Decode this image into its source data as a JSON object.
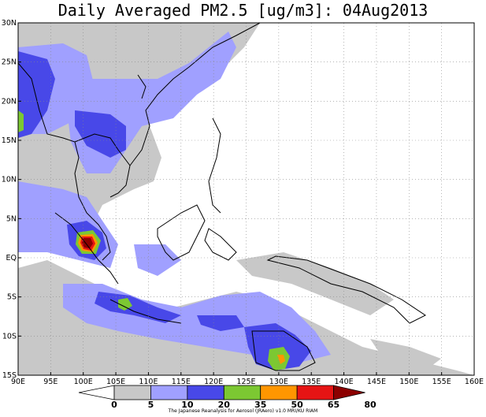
{
  "title": "Daily Averaged PM2.5 [ug/m3]: 04Aug2013",
  "lat_labels": [
    "30N",
    "25N",
    "20N",
    "15N",
    "10N",
    "5N",
    "EQ",
    "5S",
    "10S",
    "15S"
  ],
  "lon_labels": [
    "90E",
    "95E",
    "100E",
    "105E",
    "110E",
    "115E",
    "120E",
    "125E",
    "130E",
    "135E",
    "140E",
    "145E",
    "150E",
    "155E",
    "160E"
  ],
  "colorbar": {
    "levels": [
      "0",
      "5",
      "10",
      "20",
      "35",
      "50",
      "65",
      "80"
    ],
    "colors": [
      "#ffffff",
      "#c8c8c8",
      "#a0a0ff",
      "#4848e8",
      "#7cc832",
      "#ff9600",
      "#e61414",
      "#8c0000"
    ]
  },
  "colors": {
    "light_gray": "#c8c8c8",
    "light_blue": "#a0a0ff",
    "blue": "#4848e8",
    "green": "#7cc832",
    "orange": "#ff9600",
    "red": "#e61414",
    "dark_red": "#8c0000"
  },
  "credit": "The Japanese Reanalysis for Aerosol (JRAero) v1.0 MRI/KU RIAM"
}
